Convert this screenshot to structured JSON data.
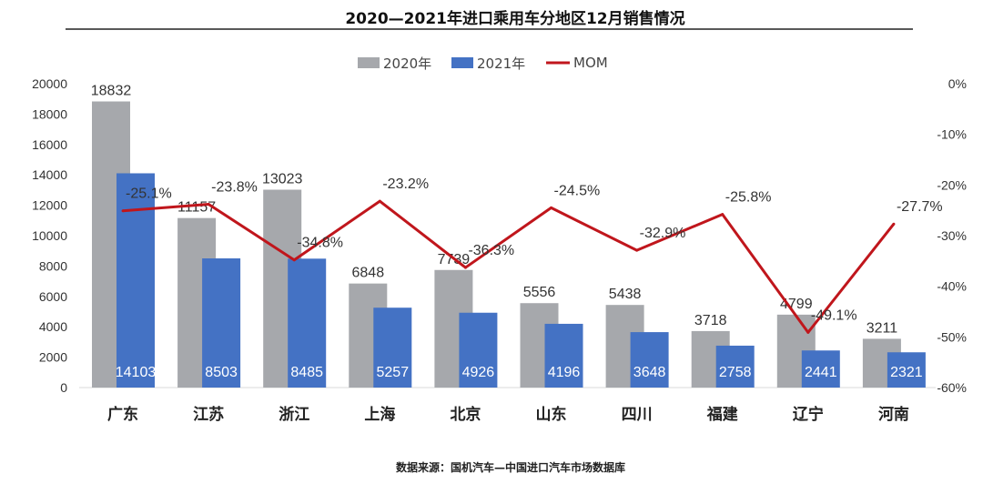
{
  "chart_data": {
    "type": "bar",
    "title": "2020—2021年进口乘用车分地区12月销售情况",
    "categories": [
      "广东",
      "江苏",
      "浙江",
      "上海",
      "北京",
      "山东",
      "四川",
      "福建",
      "辽宁",
      "河南"
    ],
    "series": [
      {
        "name": "2020年",
        "type": "bar",
        "color": "#a6a8ac",
        "values": [
          18832,
          11157,
          13023,
          6848,
          7739,
          5556,
          5438,
          3718,
          4799,
          3211
        ],
        "labels": [
          "18832",
          "11157",
          "13023",
          "6848",
          "7739",
          "5556",
          "5438",
          "3718",
          "4799",
          "3211"
        ]
      },
      {
        "name": "2021年",
        "type": "bar",
        "color": "#4472c4",
        "values": [
          14103,
          8503,
          8485,
          5257,
          4926,
          4196,
          3648,
          2758,
          2441,
          2321
        ],
        "labels": [
          "14103",
          "8503",
          "8485",
          "5257",
          "4926",
          "4196",
          "3648",
          "2758",
          "2441",
          "2321"
        ]
      },
      {
        "name": "MOM",
        "type": "line",
        "axis": "right",
        "color": "#c0161c",
        "values": [
          -25.1,
          -23.8,
          -34.8,
          -23.2,
          -36.3,
          -24.5,
          -32.9,
          -25.8,
          -49.1,
          -27.7
        ],
        "labels": [
          "-25.1%",
          "-23.8%",
          "-34.8%",
          "-23.2%",
          "-36.3%",
          "-24.5%",
          "-32.9%",
          "-25.8%",
          "-49.1%",
          "-27.7%"
        ]
      }
    ],
    "y_left": {
      "min": 0,
      "max": 20000,
      "step": 2000,
      "ticks": [
        "0",
        "2000",
        "4000",
        "6000",
        "8000",
        "10000",
        "12000",
        "14000",
        "16000",
        "18000",
        "20000"
      ]
    },
    "y_right": {
      "min": -60,
      "max": 0,
      "step": 10,
      "ticks": [
        "0%",
        "-10%",
        "-20%",
        "-30%",
        "-40%",
        "-50%",
        "-60%"
      ]
    },
    "legend_position": "top-center",
    "source": "数据来源：国机汽车—中国进口汽车市场数据库"
  }
}
